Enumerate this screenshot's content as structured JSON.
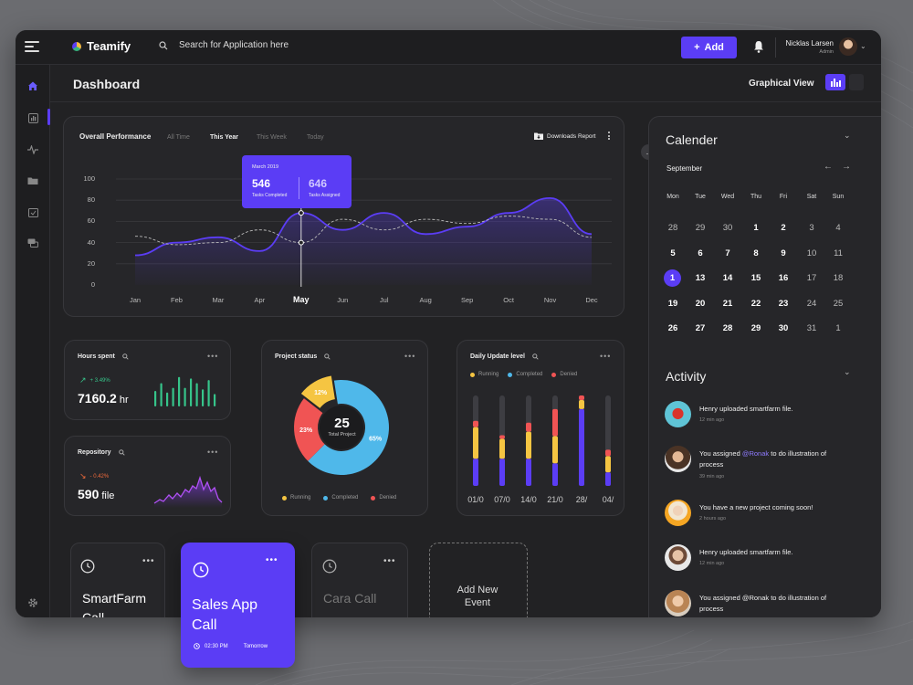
{
  "app": {
    "name": "Teamify",
    "search_placeholder": "Search for Application here",
    "add_label": "Add"
  },
  "user": {
    "name": "Nicklas Larsen",
    "role": "Admin"
  },
  "page": {
    "title": "Dashboard",
    "view_label": "Graphical View"
  },
  "performance": {
    "title": "Overall Performance",
    "tabs": [
      "All Time",
      "This Year",
      "This Week",
      "Today"
    ],
    "active_tab": "This Year",
    "download_label": "Downloads Report",
    "tooltip": {
      "month": "March 2019",
      "completed": "546",
      "completed_label": "Tasks Completed",
      "assigned": "646",
      "assigned_label": "Tasks Assigned"
    }
  },
  "chart_data": {
    "type": "line",
    "x": [
      "Jan",
      "Feb",
      "Mar",
      "Apr",
      "May",
      "Jun",
      "Jul",
      "Aug",
      "Sep",
      "Oct",
      "Nov",
      "Dec"
    ],
    "highlight": "May",
    "ylim": [
      0,
      100
    ],
    "yticks": [
      0,
      20,
      40,
      60,
      80,
      100
    ],
    "series": [
      {
        "values": [
          28,
          40,
          45,
          32,
          68,
          52,
          68,
          48,
          55,
          68,
          82,
          48
        ]
      },
      {
        "values": [
          46,
          38,
          40,
          52,
          40,
          62,
          52,
          62,
          58,
          65,
          62,
          45
        ]
      }
    ]
  },
  "hours": {
    "title": "Hours spent",
    "delta": "+ 3.49%",
    "value": "7160.2",
    "unit": "hr",
    "bars": [
      0.5,
      0.75,
      0.45,
      0.6,
      0.95,
      0.6,
      0.9,
      0.75,
      0.55,
      0.85,
      0.4
    ]
  },
  "repo": {
    "title": "Repository",
    "delta": "- 0.42%",
    "value": "590",
    "unit": "file"
  },
  "project_status": {
    "title": "Project status",
    "total": "25",
    "total_label": "Total Project",
    "slices": [
      {
        "label": "65%",
        "value": 65,
        "color": "#4fb8ea"
      },
      {
        "label": "23%",
        "value": 23,
        "color": "#f05454"
      },
      {
        "label": "12%",
        "value": 12,
        "color": "#f5c542"
      }
    ],
    "legend": [
      "Running",
      "Completed",
      "Denied"
    ]
  },
  "daily": {
    "title": "Daily Update level",
    "legend": [
      "Running",
      "Completed",
      "Denied"
    ],
    "x": [
      "01/0",
      "07/0",
      "14/0",
      "21/0",
      "28/",
      "04/"
    ],
    "bars": [
      {
        "purple": 0.3,
        "yellow": 0.35,
        "red": 0.07
      },
      {
        "purple": 0.3,
        "yellow": 0.22,
        "red": 0.04
      },
      {
        "purple": 0.3,
        "yellow": 0.3,
        "red": 0.1
      },
      {
        "purple": 0.25,
        "yellow": 0.3,
        "red": 0.3
      },
      {
        "purple": 0.85,
        "yellow": 0.1,
        "red": 0.05
      },
      {
        "purple": 0.15,
        "yellow": 0.18,
        "red": 0.07
      }
    ]
  },
  "calendar": {
    "title": "Calender",
    "month": "September",
    "dow": [
      "Mon",
      "Tue",
      "Wed",
      "Thu",
      "Fri",
      "Sat",
      "Sun"
    ],
    "weeks": [
      [
        "28",
        "29",
        "30",
        "1",
        "2",
        "3",
        "4"
      ],
      [
        "5",
        "6",
        "7",
        "8",
        "9",
        "10",
        "11"
      ],
      [
        "1",
        "13",
        "14",
        "15",
        "16",
        "17",
        "18"
      ],
      [
        "19",
        "20",
        "21",
        "22",
        "23",
        "24",
        "25"
      ],
      [
        "26",
        "27",
        "28",
        "29",
        "30",
        "31",
        "1"
      ]
    ]
  },
  "activity": {
    "title": "Activity",
    "items": [
      {
        "text": "Henry uploaded smartfarm file.",
        "time": "12 min ago"
      },
      {
        "pre": "You assigned ",
        "mention": "@Ronak",
        "post": " to do illustration of process",
        "time": "39 min ago"
      },
      {
        "text": "You have a new project coming soon!",
        "time": "2 hours ago"
      },
      {
        "text": "Henry uploaded smartfarm file.",
        "time": "12 min ago"
      },
      {
        "text": "You assigned @Ronak to do illustration of process",
        "time": ""
      }
    ]
  },
  "events": [
    {
      "title": "SmartFarm Call"
    },
    {
      "title": "Sales App Call",
      "time": "02:30 PM",
      "day": "Tomorrow"
    },
    {
      "title": "Cara Call"
    },
    {
      "title": "Add New Event"
    }
  ]
}
